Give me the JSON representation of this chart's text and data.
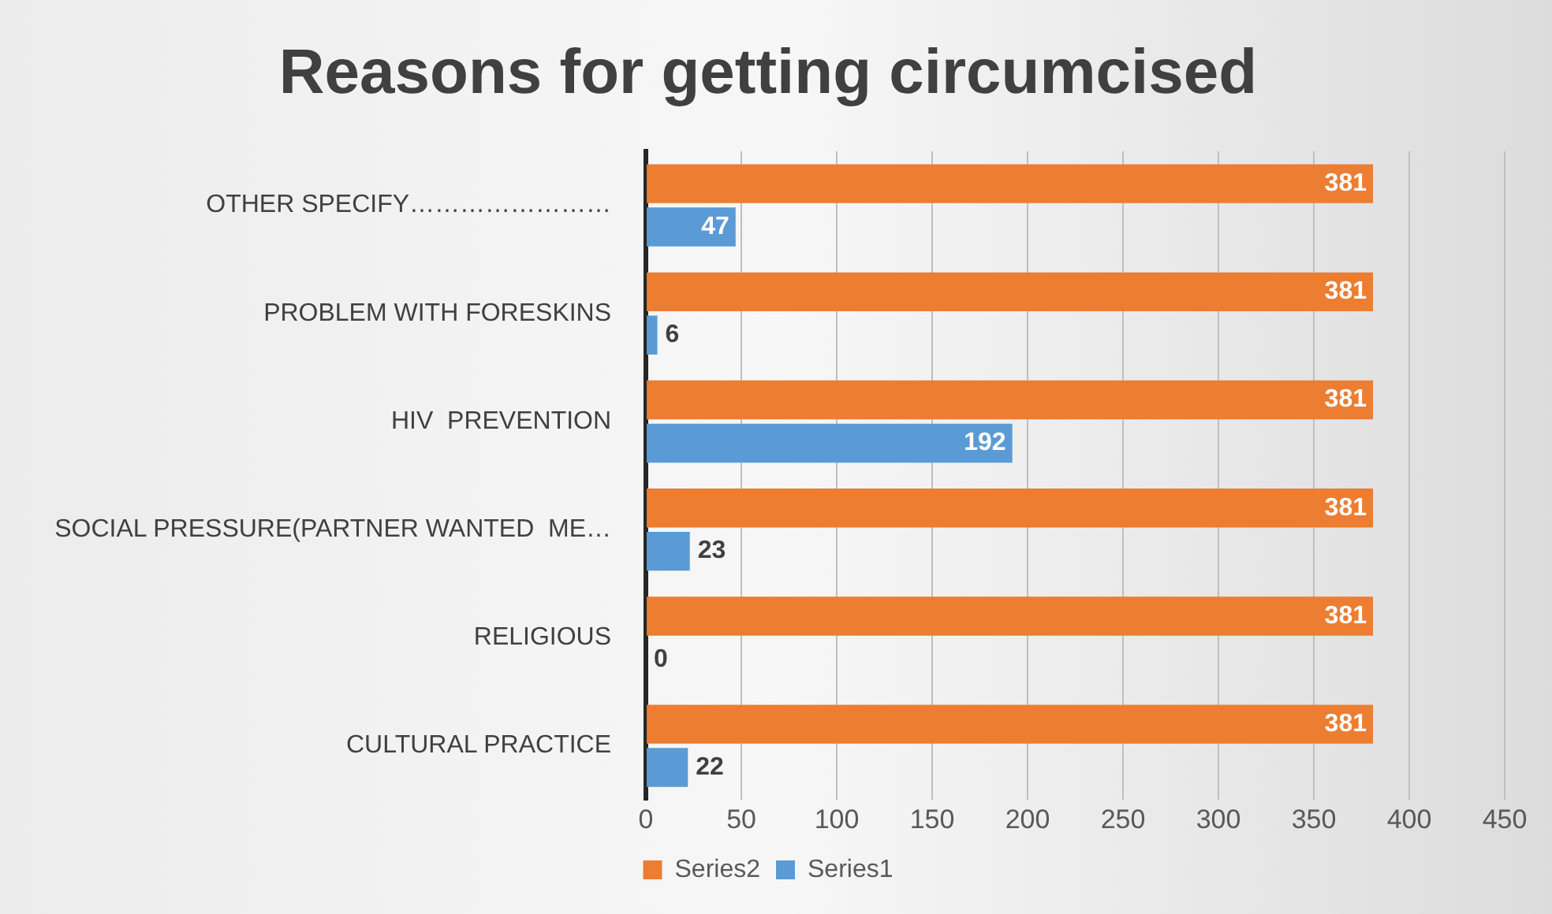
{
  "chart_data": {
    "type": "bar",
    "orientation": "horizontal",
    "title": "Reasons for getting circumcised",
    "categories": [
      "OTHER SPECIFY……………………",
      "PROBLEM WITH FORESKINS",
      "HIV  PREVENTION",
      "SOCIAL PRESSURE(PARTNER WANTED  ME…",
      "RELIGIOUS",
      "CULTURAL PRACTICE"
    ],
    "series": [
      {
        "name": "Series2",
        "color": "#ed7d31",
        "values": [
          381,
          381,
          381,
          381,
          381,
          381
        ]
      },
      {
        "name": "Series1",
        "color": "#5b9bd5",
        "values": [
          47,
          6,
          192,
          23,
          0,
          22
        ]
      }
    ],
    "xlim": [
      0,
      450
    ],
    "xticks": [
      0,
      50,
      100,
      150,
      200,
      250,
      300,
      350,
      400,
      450
    ],
    "grid": "x",
    "legend": "bottom",
    "data_labels": true
  }
}
